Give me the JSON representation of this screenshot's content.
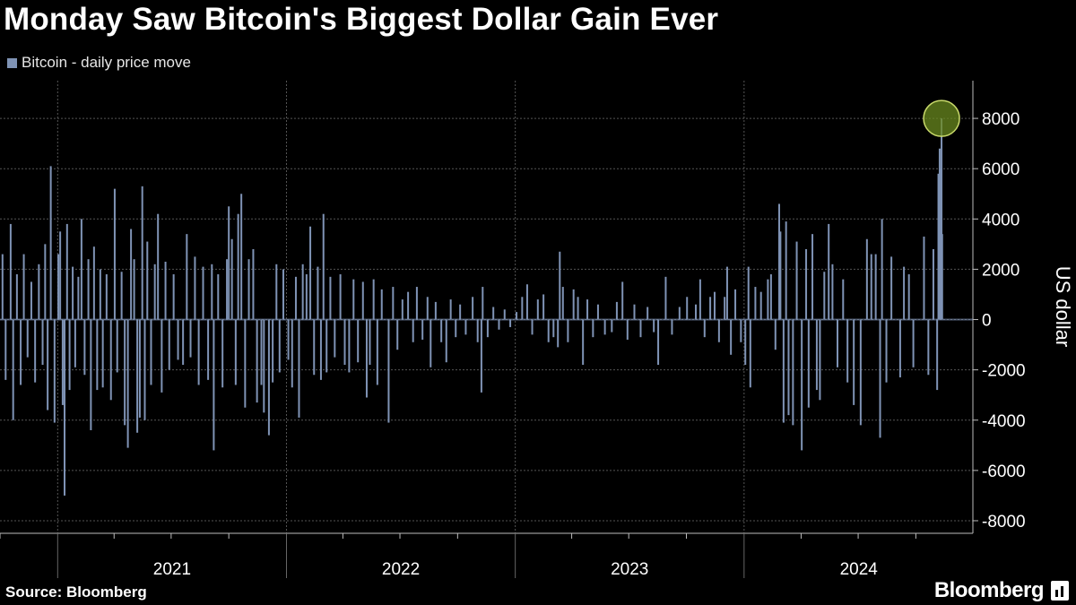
{
  "title": "Monday Saw Bitcoin's Biggest Dollar Gain Ever",
  "source": "Source: Bloomberg",
  "brand": "Bloomberg",
  "chart_data": {
    "type": "bar",
    "title": "Monday Saw Bitcoin's Biggest Dollar Gain Ever",
    "ylabel": "US dollar",
    "ylim": [
      -8500,
      9500
    ],
    "yticks": [
      -8000,
      -6000,
      -4000,
      -2000,
      0,
      2000,
      4000,
      6000,
      8000
    ],
    "xticklabels": [
      "2021",
      "2022",
      "2023",
      "2024"
    ],
    "xlim": [
      "2020-10-01",
      "2024-12-31"
    ],
    "grid": true,
    "legend_position": "top-left",
    "series_color": "#7f93b5",
    "highlight_color": "#6a8a1f",
    "series": [
      {
        "name": "Bitcoin - daily price move",
        "values": [
          [
            "2020-10-05",
            2600
          ],
          [
            "2020-10-10",
            -2400
          ],
          [
            "2020-10-18",
            3800
          ],
          [
            "2020-10-22",
            -4000
          ],
          [
            "2020-10-28",
            1800
          ],
          [
            "2020-11-03",
            -2600
          ],
          [
            "2020-11-08",
            2600
          ],
          [
            "2020-11-14",
            -1500
          ],
          [
            "2020-11-20",
            1500
          ],
          [
            "2020-11-26",
            -2500
          ],
          [
            "2020-12-02",
            2200
          ],
          [
            "2020-12-08",
            -1800
          ],
          [
            "2020-12-12",
            3000
          ],
          [
            "2020-12-16",
            -3600
          ],
          [
            "2020-12-21",
            6100
          ],
          [
            "2020-12-27",
            -4100
          ],
          [
            "2021-01-02",
            2600
          ],
          [
            "2021-01-05",
            3500
          ],
          [
            "2021-01-09",
            -3400
          ],
          [
            "2021-01-12",
            -7000
          ],
          [
            "2021-01-16",
            3800
          ],
          [
            "2021-01-20",
            -2800
          ],
          [
            "2021-01-25",
            2100
          ],
          [
            "2021-01-29",
            -1900
          ],
          [
            "2021-02-03",
            1700
          ],
          [
            "2021-02-08",
            4000
          ],
          [
            "2021-02-13",
            -2200
          ],
          [
            "2021-02-19",
            2400
          ],
          [
            "2021-02-23",
            -4400
          ],
          [
            "2021-02-28",
            2900
          ],
          [
            "2021-03-05",
            -2800
          ],
          [
            "2021-03-10",
            2000
          ],
          [
            "2021-03-14",
            -2700
          ],
          [
            "2021-03-20",
            1800
          ],
          [
            "2021-03-27",
            -3200
          ],
          [
            "2021-04-02",
            5200
          ],
          [
            "2021-04-06",
            -2100
          ],
          [
            "2021-04-13",
            1900
          ],
          [
            "2021-04-18",
            -4200
          ],
          [
            "2021-04-23",
            -5100
          ],
          [
            "2021-04-28",
            3600
          ],
          [
            "2021-05-03",
            2400
          ],
          [
            "2021-05-08",
            -4500
          ],
          [
            "2021-05-12",
            -3900
          ],
          [
            "2021-05-16",
            5300
          ],
          [
            "2021-05-20",
            -4000
          ],
          [
            "2021-05-24",
            3100
          ],
          [
            "2021-05-30",
            -2600
          ],
          [
            "2021-06-05",
            2200
          ],
          [
            "2021-06-10",
            4200
          ],
          [
            "2021-06-16",
            -2900
          ],
          [
            "2021-06-22",
            2300
          ],
          [
            "2021-06-28",
            -2000
          ],
          [
            "2021-07-05",
            1800
          ],
          [
            "2021-07-12",
            -1600
          ],
          [
            "2021-07-20",
            -1800
          ],
          [
            "2021-07-26",
            3400
          ],
          [
            "2021-08-01",
            -1500
          ],
          [
            "2021-08-08",
            2500
          ],
          [
            "2021-08-14",
            -2600
          ],
          [
            "2021-08-21",
            2100
          ],
          [
            "2021-08-29",
            -2400
          ],
          [
            "2021-09-04",
            2200
          ],
          [
            "2021-09-07",
            -5200
          ],
          [
            "2021-09-14",
            1800
          ],
          [
            "2021-09-21",
            -2700
          ],
          [
            "2021-09-28",
            2400
          ],
          [
            "2021-10-01",
            4500
          ],
          [
            "2021-10-06",
            3200
          ],
          [
            "2021-10-12",
            -2600
          ],
          [
            "2021-10-16",
            4200
          ],
          [
            "2021-10-21",
            5000
          ],
          [
            "2021-10-27",
            -3500
          ],
          [
            "2021-11-02",
            2400
          ],
          [
            "2021-11-09",
            2800
          ],
          [
            "2021-11-15",
            -3300
          ],
          [
            "2021-11-22",
            -2600
          ],
          [
            "2021-11-26",
            -3700
          ],
          [
            "2021-12-04",
            -4600
          ],
          [
            "2021-12-10",
            -2500
          ],
          [
            "2021-12-16",
            2200
          ],
          [
            "2021-12-21",
            -2100
          ],
          [
            "2021-12-27",
            2000
          ],
          [
            "2022-01-04",
            -1600
          ],
          [
            "2022-01-10",
            -2700
          ],
          [
            "2022-01-16",
            1700
          ],
          [
            "2022-01-21",
            -3900
          ],
          [
            "2022-01-27",
            2200
          ],
          [
            "2022-02-02",
            1800
          ],
          [
            "2022-02-08",
            3700
          ],
          [
            "2022-02-14",
            -2200
          ],
          [
            "2022-02-20",
            2100
          ],
          [
            "2022-02-25",
            -2400
          ],
          [
            "2022-03-01",
            4200
          ],
          [
            "2022-03-06",
            -2100
          ],
          [
            "2022-03-12",
            1700
          ],
          [
            "2022-03-19",
            -1500
          ],
          [
            "2022-03-28",
            1800
          ],
          [
            "2022-04-04",
            -1800
          ],
          [
            "2022-04-11",
            -2100
          ],
          [
            "2022-04-18",
            1600
          ],
          [
            "2022-04-25",
            -1700
          ],
          [
            "2022-05-03",
            1500
          ],
          [
            "2022-05-09",
            -3100
          ],
          [
            "2022-05-14",
            -1800
          ],
          [
            "2022-05-20",
            1600
          ],
          [
            "2022-05-26",
            -2600
          ],
          [
            "2022-06-02",
            1200
          ],
          [
            "2022-06-13",
            -4100
          ],
          [
            "2022-06-20",
            1300
          ],
          [
            "2022-06-27",
            -1200
          ],
          [
            "2022-07-05",
            800
          ],
          [
            "2022-07-14",
            1100
          ],
          [
            "2022-07-22",
            -900
          ],
          [
            "2022-07-28",
            1300
          ],
          [
            "2022-08-06",
            -800
          ],
          [
            "2022-08-14",
            900
          ],
          [
            "2022-08-19",
            -1900
          ],
          [
            "2022-08-27",
            700
          ],
          [
            "2022-09-05",
            -900
          ],
          [
            "2022-09-13",
            -1700
          ],
          [
            "2022-09-20",
            800
          ],
          [
            "2022-09-28",
            -700
          ],
          [
            "2022-10-05",
            600
          ],
          [
            "2022-10-14",
            -600
          ],
          [
            "2022-10-25",
            900
          ],
          [
            "2022-11-02",
            -900
          ],
          [
            "2022-11-08",
            -2900
          ],
          [
            "2022-11-10",
            1300
          ],
          [
            "2022-11-18",
            -700
          ],
          [
            "2022-11-27",
            500
          ],
          [
            "2022-12-06",
            -400
          ],
          [
            "2022-12-15",
            400
          ],
          [
            "2022-12-24",
            -300
          ],
          [
            "2023-01-03",
            300
          ],
          [
            "2023-01-12",
            900
          ],
          [
            "2023-01-20",
            1400
          ],
          [
            "2023-01-28",
            -600
          ],
          [
            "2023-02-06",
            800
          ],
          [
            "2023-02-15",
            1000
          ],
          [
            "2023-02-23",
            -900
          ],
          [
            "2023-03-03",
            -700
          ],
          [
            "2023-03-10",
            -1100
          ],
          [
            "2023-03-13",
            2700
          ],
          [
            "2023-03-18",
            1300
          ],
          [
            "2023-03-26",
            -900
          ],
          [
            "2023-04-04",
            1200
          ],
          [
            "2023-04-11",
            900
          ],
          [
            "2023-04-19",
            -1800
          ],
          [
            "2023-04-26",
            800
          ],
          [
            "2023-05-05",
            -700
          ],
          [
            "2023-05-13",
            600
          ],
          [
            "2023-05-24",
            -600
          ],
          [
            "2023-06-04",
            -500
          ],
          [
            "2023-06-12",
            700
          ],
          [
            "2023-06-21",
            1500
          ],
          [
            "2023-06-29",
            -800
          ],
          [
            "2023-07-10",
            600
          ],
          [
            "2023-07-20",
            -700
          ],
          [
            "2023-07-31",
            500
          ],
          [
            "2023-08-10",
            -500
          ],
          [
            "2023-08-17",
            -1800
          ],
          [
            "2023-08-29",
            1700
          ],
          [
            "2023-09-08",
            -600
          ],
          [
            "2023-09-20",
            500
          ],
          [
            "2023-10-02",
            900
          ],
          [
            "2023-10-16",
            600
          ],
          [
            "2023-10-23",
            1600
          ],
          [
            "2023-10-30",
            -700
          ],
          [
            "2023-11-08",
            900
          ],
          [
            "2023-11-15",
            1100
          ],
          [
            "2023-11-22",
            -900
          ],
          [
            "2023-12-01",
            900
          ],
          [
            "2023-12-05",
            2100
          ],
          [
            "2023-12-11",
            -1400
          ],
          [
            "2023-12-18",
            1200
          ],
          [
            "2023-12-27",
            -900
          ],
          [
            "2024-01-03",
            -1800
          ],
          [
            "2024-01-08",
            2100
          ],
          [
            "2024-01-11",
            -2700
          ],
          [
            "2024-01-19",
            1300
          ],
          [
            "2024-01-28",
            1100
          ],
          [
            "2024-02-08",
            1600
          ],
          [
            "2024-02-13",
            1800
          ],
          [
            "2024-02-20",
            -1200
          ],
          [
            "2024-02-26",
            4600
          ],
          [
            "2024-02-28",
            3500
          ],
          [
            "2024-03-04",
            -4100
          ],
          [
            "2024-03-08",
            3900
          ],
          [
            "2024-03-12",
            -3800
          ],
          [
            "2024-03-19",
            -4200
          ],
          [
            "2024-03-25",
            3100
          ],
          [
            "2024-04-02",
            -5200
          ],
          [
            "2024-04-09",
            2800
          ],
          [
            "2024-04-13",
            -3500
          ],
          [
            "2024-04-19",
            3400
          ],
          [
            "2024-04-26",
            -2800
          ],
          [
            "2024-05-01",
            -3200
          ],
          [
            "2024-05-08",
            1900
          ],
          [
            "2024-05-15",
            3800
          ],
          [
            "2024-05-21",
            2200
          ],
          [
            "2024-05-29",
            -1900
          ],
          [
            "2024-06-07",
            1600
          ],
          [
            "2024-06-14",
            -2500
          ],
          [
            "2024-06-24",
            -3400
          ],
          [
            "2024-07-05",
            -4200
          ],
          [
            "2024-07-15",
            3200
          ],
          [
            "2024-07-22",
            2600
          ],
          [
            "2024-07-29",
            2600
          ],
          [
            "2024-08-05",
            -4700
          ],
          [
            "2024-08-08",
            4000
          ],
          [
            "2024-08-15",
            -2500
          ],
          [
            "2024-08-23",
            2500
          ],
          [
            "2024-09-06",
            -2300
          ],
          [
            "2024-09-12",
            2100
          ],
          [
            "2024-09-20",
            1800
          ],
          [
            "2024-09-27",
            -1900
          ],
          [
            "2024-10-14",
            3300
          ],
          [
            "2024-10-21",
            -2200
          ],
          [
            "2024-10-29",
            2800
          ],
          [
            "2024-11-04",
            -2800
          ],
          [
            "2024-11-06",
            5800
          ],
          [
            "2024-11-08",
            6800
          ],
          [
            "2024-11-10",
            6000
          ],
          [
            "2024-11-11",
            8000
          ],
          [
            "2024-11-12",
            3400
          ]
        ]
      }
    ],
    "annotations": [
      {
        "type": "circle",
        "date": "2024-11-11",
        "value": 8000
      }
    ]
  }
}
